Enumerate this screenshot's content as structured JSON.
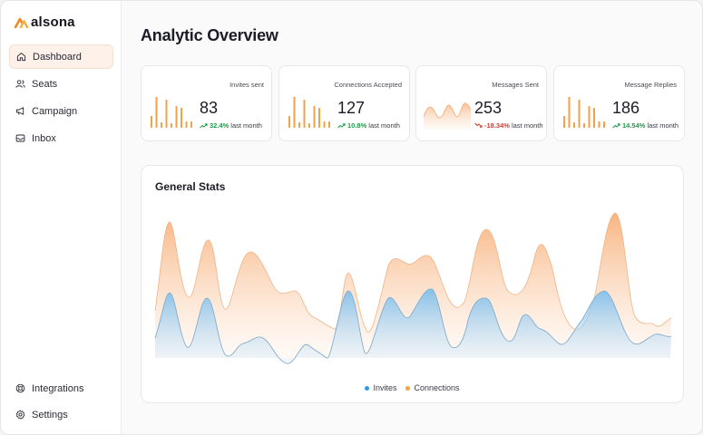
{
  "brand": {
    "name": "alsona",
    "accent": "#f08a24"
  },
  "sidebar": {
    "items": [
      {
        "label": "Dashboard",
        "icon": "home-icon",
        "active": true
      },
      {
        "label": "Seats",
        "icon": "users-icon",
        "active": false
      },
      {
        "label": "Campaign",
        "icon": "megaphone-icon",
        "active": false
      },
      {
        "label": "Inbox",
        "icon": "inbox-icon",
        "active": false
      }
    ],
    "bottom_items": [
      {
        "label": "Integrations",
        "icon": "lifebuoy-icon"
      },
      {
        "label": "Settings",
        "icon": "gear-icon"
      }
    ]
  },
  "page": {
    "title": "Analytic Overview"
  },
  "cards": [
    {
      "title": "Invites sent",
      "value": "83",
      "delta": "32.4%",
      "delta_suffix": "last month",
      "trend": "up",
      "spark": "bars"
    },
    {
      "title": "Connections Accepted",
      "value": "127",
      "delta": "10.8%",
      "delta_suffix": "last month",
      "trend": "up",
      "spark": "bars"
    },
    {
      "title": "Messages Sent",
      "value": "253",
      "delta": "-18.34%",
      "delta_suffix": "last month",
      "trend": "down",
      "spark": "area"
    },
    {
      "title": "Message Replies",
      "value": "186",
      "delta": "14.54%",
      "delta_suffix": "last month",
      "trend": "up",
      "spark": "bars"
    }
  ],
  "general_stats": {
    "title": "General Stats",
    "legend": [
      {
        "label": "Invites",
        "color": "#2f9be8"
      },
      {
        "label": "Connections",
        "color": "#f5a53c"
      }
    ]
  },
  "colors": {
    "up": "#1e9b4a",
    "down": "#d63a2f",
    "bar": "#f0a24a"
  }
}
